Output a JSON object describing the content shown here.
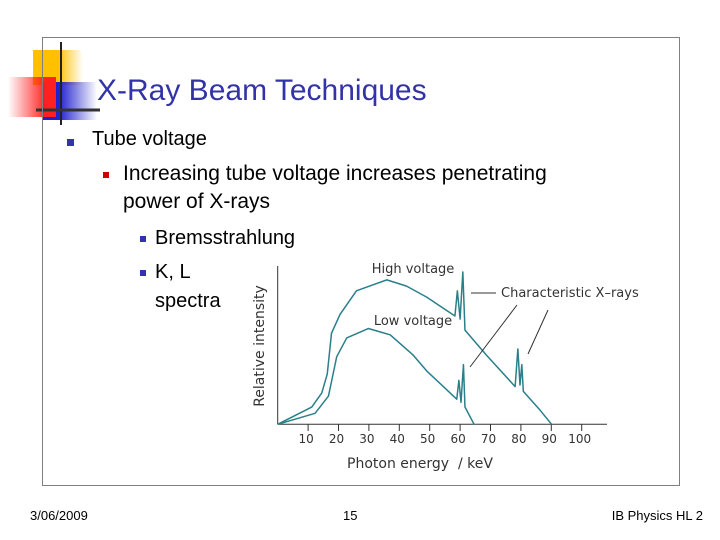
{
  "slide": {
    "title": "X-Ray Beam Techniques",
    "bullets": [
      {
        "level": 1,
        "text": "Tube voltage"
      },
      {
        "level": 2,
        "text": "Increasing tube voltage increases penetrating"
      },
      {
        "level": 2,
        "text": "power of X-rays"
      },
      {
        "level": 3,
        "text": "Bremsstrahlung"
      },
      {
        "level": 3,
        "text": "K, L"
      },
      {
        "level": 3,
        "text": "spectra"
      }
    ],
    "colors": {
      "title": "#3333a8",
      "bullet_level1": "#3333b0",
      "bullet_level2": "#cc0000",
      "bullet_level3": "#3333b0",
      "curve": "#2a7f8a"
    }
  },
  "footer": {
    "date": "3/06/2009",
    "page": "15",
    "course": "IB Physics HL 2"
  },
  "chart_data": {
    "type": "line",
    "xlabel": "Photon energy  / keV",
    "ylabel": "Relative intensity",
    "xticks": [
      10,
      20,
      30,
      40,
      50,
      60,
      70,
      80,
      90,
      100
    ],
    "xlim": [
      0,
      108
    ],
    "ylim": [
      0,
      1
    ],
    "grid": false,
    "series": [
      {
        "name": "High voltage",
        "points": [
          [
            0,
            0
          ],
          [
            11.2,
            0.11
          ],
          [
            14.5,
            0.2
          ],
          [
            16.3,
            0.32
          ],
          [
            17.7,
            0.58
          ],
          [
            20.5,
            0.7
          ],
          [
            25.9,
            0.85
          ],
          [
            35.9,
            0.92
          ],
          [
            42.4,
            0.88
          ],
          [
            49,
            0.81
          ],
          [
            58.3,
            0.69
          ],
          [
            59.1,
            0.85
          ],
          [
            60,
            0.67
          ],
          [
            60.9,
            0.97
          ],
          [
            61.6,
            0.6
          ],
          [
            68.7,
            0.44
          ],
          [
            78.1,
            0.24
          ],
          [
            79,
            0.48
          ],
          [
            79.7,
            0.25
          ],
          [
            80.3,
            0.38
          ],
          [
            80.8,
            0.21
          ],
          [
            86.3,
            0.09
          ],
          [
            90.1,
            0
          ]
        ]
      },
      {
        "name": "Low voltage",
        "points": [
          [
            0,
            0
          ],
          [
            12.3,
            0.07
          ],
          [
            16.7,
            0.18
          ],
          [
            19.4,
            0.43
          ],
          [
            22.7,
            0.55
          ],
          [
            29.8,
            0.61
          ],
          [
            37,
            0.57
          ],
          [
            44.6,
            0.44
          ],
          [
            49,
            0.34
          ],
          [
            58.9,
            0.16
          ],
          [
            59.6,
            0.28
          ],
          [
            60.3,
            0.14
          ],
          [
            61.1,
            0.38
          ],
          [
            61.6,
            0.11
          ],
          [
            64.6,
            0
          ]
        ]
      }
    ],
    "annotations": [
      "Characteristic X–rays"
    ]
  }
}
